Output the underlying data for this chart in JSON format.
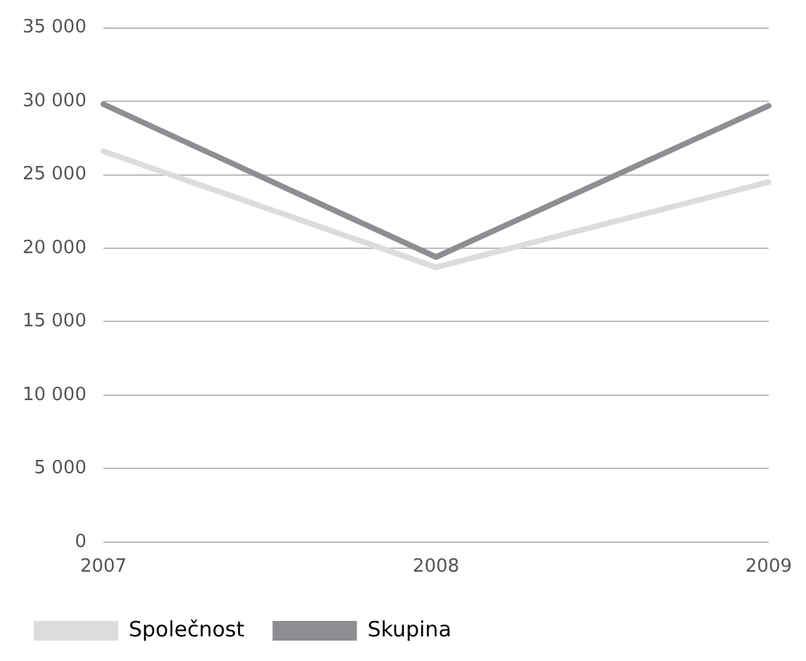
{
  "chart_data": {
    "type": "line",
    "categories": [
      "2007",
      "2008",
      "2009"
    ],
    "series": [
      {
        "name": "Společnost",
        "color": "#dcdcdc",
        "values": [
          26600,
          18700,
          24500
        ]
      },
      {
        "name": "Skupina",
        "color": "#8e8e92",
        "values": [
          29800,
          19400,
          29700
        ]
      }
    ],
    "ylim": [
      0,
      35000
    ],
    "yticks": [
      {
        "value": 0,
        "label": "0"
      },
      {
        "value": 5000,
        "label": "5 000"
      },
      {
        "value": 10000,
        "label": "10 000"
      },
      {
        "value": 15000,
        "label": "15 000"
      },
      {
        "value": 20000,
        "label": "20 000"
      },
      {
        "value": 25000,
        "label": "25 000"
      },
      {
        "value": 30000,
        "label": "30 000"
      },
      {
        "value": 35000,
        "label": "35 000"
      }
    ],
    "grid": "y",
    "legend": "bottom left",
    "marker": "none",
    "line_style": "solid"
  }
}
